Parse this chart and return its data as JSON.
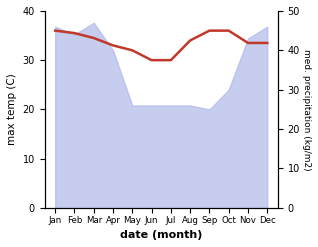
{
  "months": [
    "Jan",
    "Feb",
    "Mar",
    "Apr",
    "May",
    "Jun",
    "Jul",
    "Aug",
    "Sep",
    "Oct",
    "Nov",
    "Dec"
  ],
  "precipitation": [
    46,
    44,
    47,
    40,
    26,
    26,
    26,
    26,
    25,
    30,
    43,
    46
  ],
  "max_temp": [
    36,
    35.5,
    34.5,
    33,
    32,
    30,
    30,
    34,
    36,
    36,
    33.5,
    33.5
  ],
  "precip_color": "#b0b8e8",
  "temp_color": "#c0392b",
  "ylabel_left": "max temp (C)",
  "ylabel_right": "med. precipitation (kg/m2)",
  "xlabel": "date (month)",
  "ylim_left": [
    0,
    40
  ],
  "ylim_right": [
    0,
    50
  ],
  "yticks_left": [
    0,
    10,
    20,
    30,
    40
  ],
  "yticks_right": [
    0,
    10,
    20,
    30,
    40,
    50
  ],
  "bg_color": "#ffffff",
  "plot_bg_color": "#ffffff"
}
